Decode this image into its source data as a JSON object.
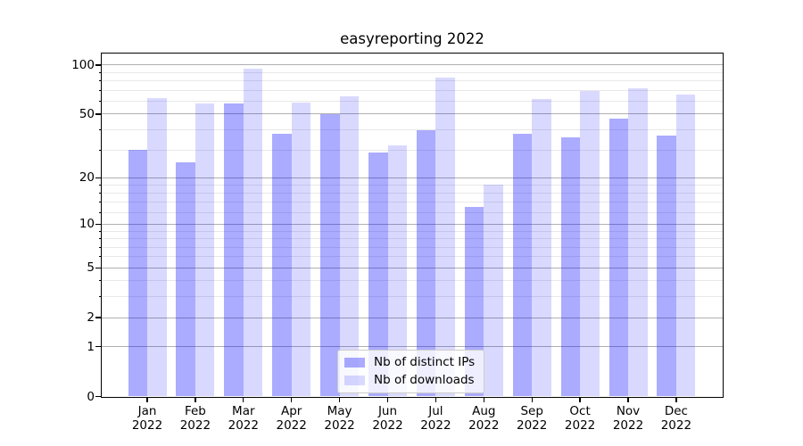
{
  "chart_data": {
    "type": "bar",
    "title": "easyreporting 2022",
    "categories": [
      "Jan 2022",
      "Feb 2022",
      "Mar 2022",
      "Apr 2022",
      "May 2022",
      "Jun 2022",
      "Jul 2022",
      "Aug 2022",
      "Sep 2022",
      "Oct 2022",
      "Nov 2022",
      "Dec 2022"
    ],
    "x_tick_months": [
      "Jan",
      "Feb",
      "Mar",
      "Apr",
      "May",
      "Jun",
      "Jul",
      "Aug",
      "Sep",
      "Oct",
      "Nov",
      "Dec"
    ],
    "x_tick_year": "2022",
    "series": [
      {
        "name": "Nb of distinct IPs",
        "color": "rgba(0,0,255,0.33)",
        "values": [
          30,
          25,
          58,
          38,
          50,
          29,
          40,
          13,
          38,
          36,
          47,
          37
        ]
      },
      {
        "name": "Nb of downloads",
        "color": "rgba(0,0,255,0.15)",
        "values": [
          63,
          58,
          95,
          59,
          64,
          32,
          84,
          18,
          62,
          69,
          72,
          66
        ]
      }
    ],
    "yscale": "log1p",
    "ylim": [
      0,
      117
    ],
    "y_major_ticks": [
      0,
      1,
      2,
      5,
      10,
      20,
      50,
      100
    ],
    "y_minor_ticks": [
      3,
      4,
      6,
      7,
      8,
      9,
      12,
      14,
      16,
      18,
      30,
      40,
      60,
      70,
      80,
      90
    ],
    "grid": "both",
    "legend_position": "lower center"
  },
  "colors": {
    "background": "#ffffff",
    "axis": "#000000",
    "text": "#000000",
    "major_grid": "#b0b0b0",
    "minor_grid": "#e8e8e8",
    "legend_bg": "rgba(255,255,255,0.8)",
    "legend_border": "#cccccc"
  }
}
